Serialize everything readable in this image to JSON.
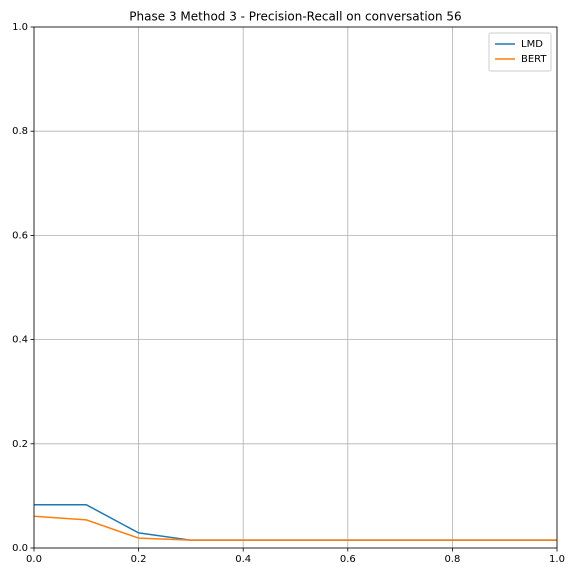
{
  "chart_data": {
    "type": "line",
    "title": "Phase 3 Method 3 - Precision-Recall on conversation 56",
    "x": [
      0,
      0.1,
      0.2,
      0.3,
      0.4,
      0.5,
      0.6,
      0.7,
      0.8,
      0.9,
      1.0
    ],
    "series": [
      {
        "name": "LMD",
        "color": "#1f77b4",
        "values": [
          0.083,
          0.083,
          0.029,
          0.015,
          0.015,
          0.015,
          0.015,
          0.015,
          0.015,
          0.015,
          0.015
        ]
      },
      {
        "name": "BERT",
        "color": "#ff7f0e",
        "values": [
          0.061,
          0.054,
          0.019,
          0.015,
          0.015,
          0.015,
          0.015,
          0.015,
          0.015,
          0.015,
          0.015
        ]
      }
    ],
    "xlim": [
      0,
      1
    ],
    "ylim": [
      0,
      1
    ],
    "xticks": [
      {
        "value": 0,
        "label": "0.0"
      },
      0.2,
      0.4,
      0.6,
      0.8,
      {
        "value": 1,
        "label": "1.0"
      }
    ],
    "yticks": [
      {
        "value": 0,
        "label": "0.0"
      },
      0.2,
      0.4,
      0.6,
      0.8,
      {
        "value": 1,
        "label": "1.0"
      }
    ],
    "grid": true,
    "legend": "upper right"
  }
}
